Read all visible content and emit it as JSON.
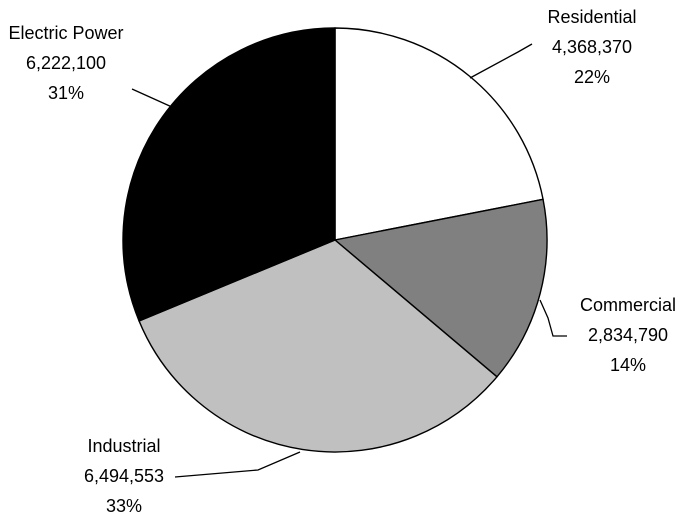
{
  "chart_data": {
    "type": "pie",
    "title": "",
    "categories": [
      "Residential",
      "Commercial",
      "Industrial",
      "Electric Power"
    ],
    "values": [
      4368370,
      2834790,
      6494553,
      6222100
    ],
    "value_labels": [
      "4,368,370",
      "2,834,790",
      "6,494,553",
      "6,222,100"
    ],
    "percent_labels": [
      "22%",
      "14%",
      "33%",
      "31%"
    ],
    "colors": [
      "#ffffff",
      "#808080",
      "#c0c0c0",
      "#000000"
    ],
    "start_angle_deg": 0,
    "direction": "clockwise",
    "legend": "none"
  }
}
